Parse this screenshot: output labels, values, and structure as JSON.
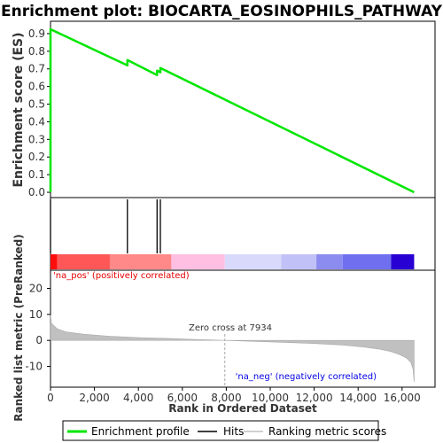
{
  "chart_data": {
    "type": "line",
    "title": "Enrichment plot: BIOCARTA_EOSINOPHILS_PATHWAY",
    "xlabel": "Rank in Ordered Dataset",
    "xlim": [
      0,
      17500
    ],
    "x_ticks": [
      0,
      2000,
      4000,
      6000,
      8000,
      10000,
      12000,
      14000,
      16000
    ],
    "x_tick_labels": [
      "0",
      "2,000",
      "4,000",
      "6,000",
      "8,000",
      "10,000",
      "12,000",
      "14,000",
      "16,000"
    ],
    "es_panel": {
      "ylabel": "Enrichment score (ES)",
      "ylim": [
        -0.03,
        0.97
      ],
      "y_ticks": [
        0.0,
        0.1,
        0.2,
        0.3,
        0.4,
        0.5,
        0.6,
        0.7,
        0.8,
        0.9
      ],
      "y_tick_labels": [
        "0.0",
        "0.1",
        "0.2",
        "0.3",
        "0.4",
        "0.5",
        "0.6",
        "0.7",
        "0.8",
        "0.9"
      ],
      "series": [
        {
          "name": "Enrichment profile",
          "color": "#00e600",
          "x": [
            0,
            0,
            3500,
            3500,
            4850,
            4850,
            5000,
            5000,
            16550
          ],
          "y": [
            0.0,
            0.925,
            0.72,
            0.75,
            0.665,
            0.69,
            0.68,
            0.705,
            0.0
          ]
        }
      ]
    },
    "hits_panel": {
      "hits": [
        0,
        3500,
        4850,
        5000
      ],
      "color_bar_segments": [
        {
          "start": 0,
          "end": 300,
          "color": "#ff0d0d"
        },
        {
          "start": 300,
          "end": 2700,
          "color": "#ff5757"
        },
        {
          "start": 2700,
          "end": 5500,
          "color": "#ff8888"
        },
        {
          "start": 5500,
          "end": 7934,
          "color": "#ffbfe3"
        },
        {
          "start": 7934,
          "end": 10500,
          "color": "#d9d9fb"
        },
        {
          "start": 10500,
          "end": 12100,
          "color": "#c1c1f7"
        },
        {
          "start": 12100,
          "end": 13300,
          "color": "#8c8cf0"
        },
        {
          "start": 13300,
          "end": 15500,
          "color": "#6f6ff0"
        },
        {
          "start": 15500,
          "end": 16550,
          "color": "#2800d4"
        }
      ]
    },
    "metric_panel": {
      "ylabel": "Ranked list metric (PreRanked)",
      "ylim": [
        -18,
        27
      ],
      "y_ticks": [
        -10,
        0,
        10,
        20
      ],
      "y_tick_labels": [
        "-10",
        "0",
        "10",
        "20"
      ],
      "zero_cross_rank": 7934,
      "fill_color": "#c0c0c0",
      "rank_x": [
        0,
        50,
        300,
        700,
        1500,
        2700,
        4000,
        5500,
        6500,
        7934,
        9000,
        10500,
        12000,
        13300,
        14300,
        15000,
        15500,
        15900,
        16200,
        16400,
        16500,
        16550
      ],
      "metric_y": [
        9.8,
        6.5,
        4.5,
        3.3,
        2.4,
        1.6,
        1.1,
        0.7,
        0.4,
        0.0,
        -0.3,
        -0.7,
        -1.2,
        -1.8,
        -2.6,
        -3.4,
        -4.3,
        -5.5,
        -6.8,
        -8.5,
        -11.0,
        -16.0
      ],
      "annotations": {
        "pos_label": "'na_pos' (positively correlated)",
        "neg_label": "'na_neg' (negatively correlated)",
        "zero_cross_label": "Zero cross at 7934"
      }
    },
    "legend": {
      "entries": [
        {
          "label": "Enrichment profile",
          "color": "#00e600"
        },
        {
          "label": "Hits",
          "color": "#000000"
        },
        {
          "label": "Ranking metric scores",
          "color": "#c0c0c0"
        }
      ],
      "placement": "bottom"
    }
  }
}
